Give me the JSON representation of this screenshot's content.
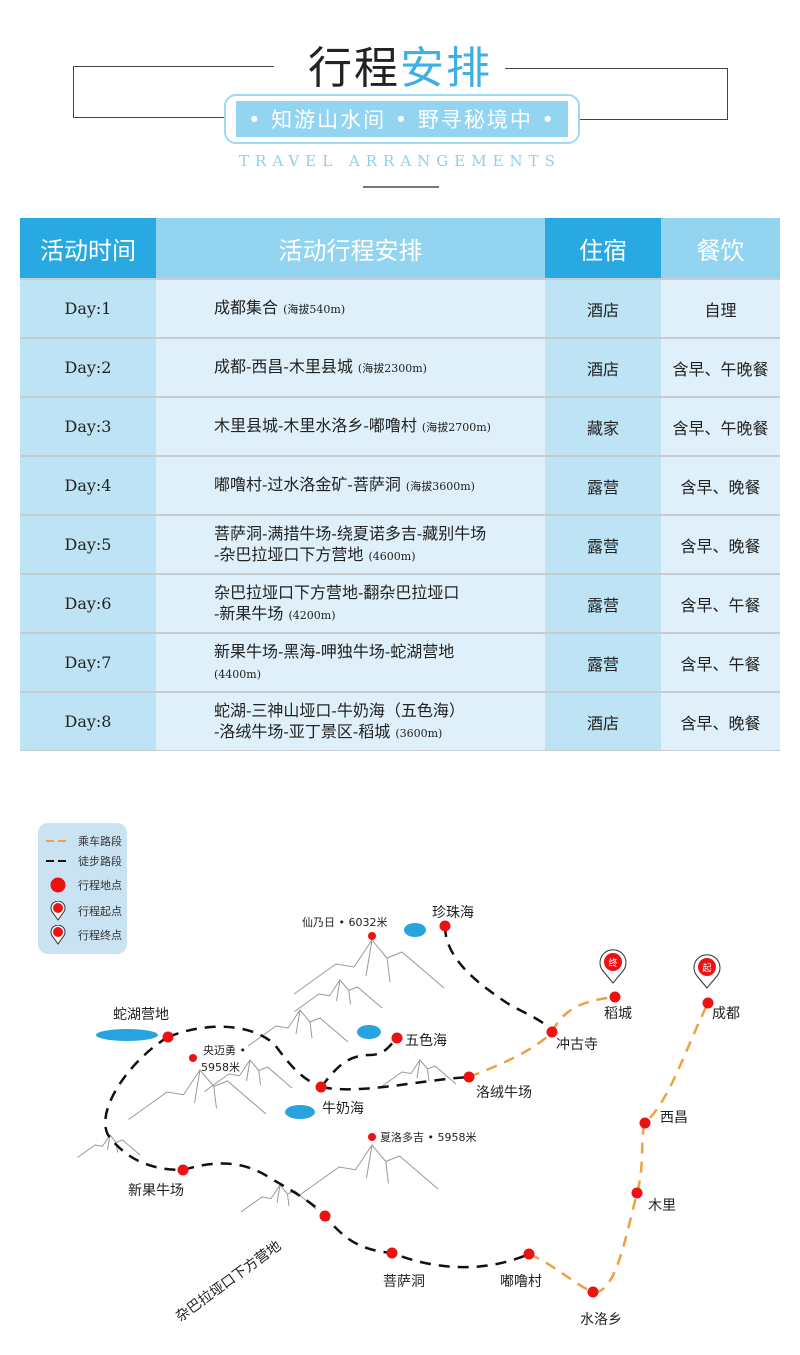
{
  "header": {
    "title_dark": "行程",
    "title_accent": "安排",
    "slogan": "• 知游山水间 • 野寻秘境中 •",
    "subtitle": "TRAVEL  ARRANGEMENTS"
  },
  "table": {
    "headers": [
      "活动时间",
      "活动行程安排",
      "住宿",
      "餐饮"
    ],
    "rows": [
      {
        "day": "Day:1",
        "route": "成都集合",
        "alt": "(海拔540m)",
        "stay": "酒店",
        "meal": "自理"
      },
      {
        "day": "Day:2",
        "route": "成都-西昌-木里县城",
        "alt": "(海拔2300m)",
        "stay": "酒店",
        "meal": "含早、午晚餐"
      },
      {
        "day": "Day:3",
        "route": "木里县城-木里水洛乡-嘟噜村",
        "alt": "(海拔2700m)",
        "stay": "藏家",
        "meal": "含早、午晚餐"
      },
      {
        "day": "Day:4",
        "route": "嘟噜村-过水洛金矿-菩萨洞",
        "alt": "(海拔3600m)",
        "stay": "露营",
        "meal": "含早、晚餐"
      },
      {
        "day": "Day:5",
        "route": "菩萨洞-满措牛场-绕夏诺多吉-藏别牛场\n-杂巴拉垭口下方营地",
        "alt": "(4600m)",
        "stay": "露营",
        "meal": "含早、晚餐"
      },
      {
        "day": "Day:6",
        "route": "杂巴拉垭口下方营地-翻杂巴拉垭口\n-新果牛场",
        "alt": "(4200m)",
        "stay": "露营",
        "meal": "含早、午餐"
      },
      {
        "day": "Day:7",
        "route": "新果牛场-黑海-呷独牛场-蛇湖营地\n",
        "alt": "(4400m)",
        "stay": "露营",
        "meal": "含早、午餐"
      },
      {
        "day": "Day:8",
        "route": "蛇湖-三神山垭口-牛奶海（五色海）\n-洛绒牛场-亚丁景区-稻城",
        "alt": "(3600m)",
        "stay": "酒店",
        "meal": "含早、晚餐"
      }
    ]
  },
  "legend": {
    "drive": "乘车路段",
    "hike": "徒步路段",
    "stop": "行程地点",
    "start": "行程起点",
    "end": "行程终点",
    "start_mark": "起",
    "end_mark": "终"
  },
  "map": {
    "places": {
      "shehu": "蛇湖营地",
      "yangmaiyong": "央迈勇 •",
      "yangmaiyong_h": "5958米",
      "xiannairi": "仙乃日 • 6032米",
      "zhenzhuhai": "珍珠海",
      "wusehai": "五色海",
      "niunaihai": "牛奶海",
      "luorong": "洛绒牛场",
      "chonggusi": "冲古寺",
      "daocheng": "稻城",
      "chengdu": "成都",
      "xichang": "西昌",
      "muli": "木里",
      "shuiluo": "水洛乡",
      "dulu": "嘟噜村",
      "pusadong": "菩萨洞",
      "zabala": "杂巴拉垭口下方营地",
      "xinguo": "新果牛场",
      "xialuoduoji": "夏洛多吉 • 5958米"
    },
    "colors": {
      "drive": "#f0a040",
      "hike": "#111111",
      "stop": "#ee1111",
      "lake": "#27a3dd"
    }
  }
}
